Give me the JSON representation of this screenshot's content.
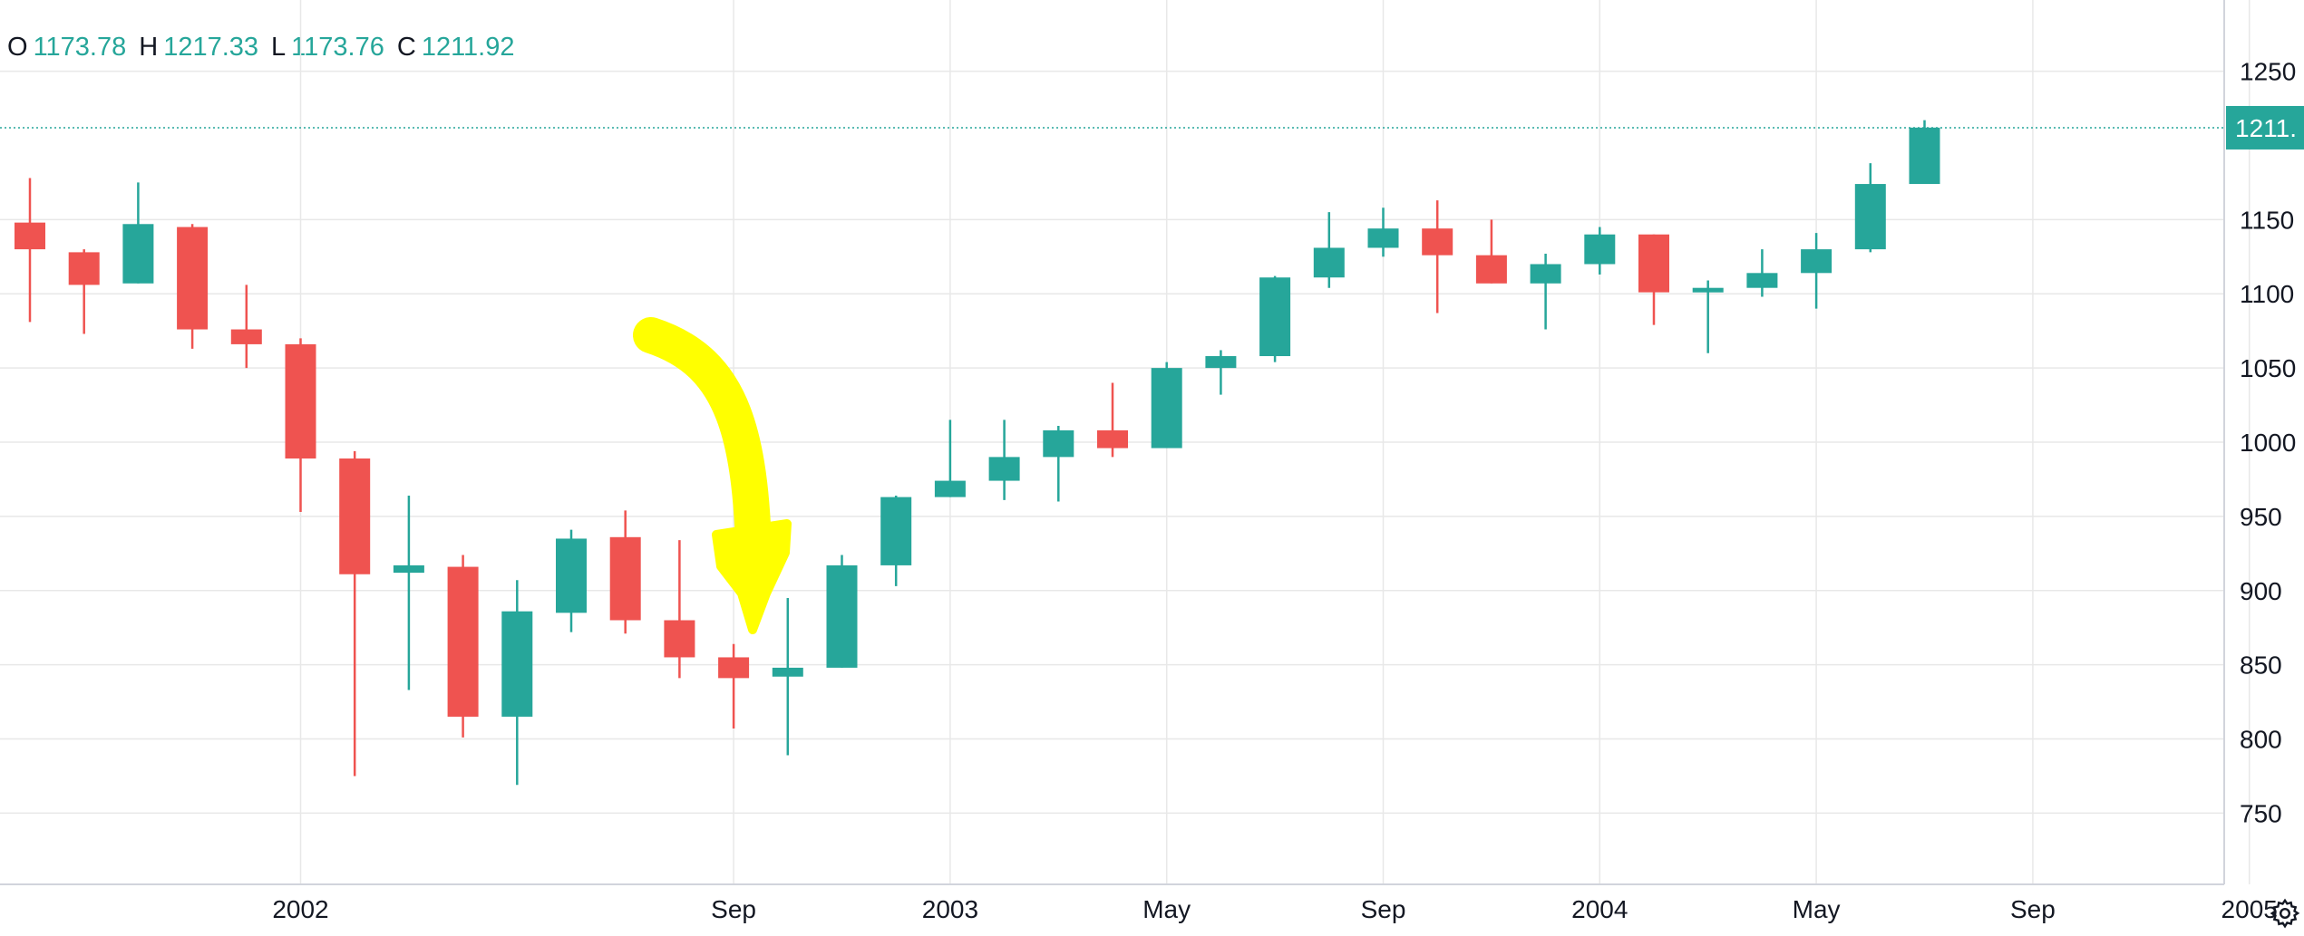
{
  "legend": {
    "o_label": "O",
    "o_value": "1173.78",
    "h_label": "H",
    "h_value": "1217.33",
    "l_label": "L",
    "l_value": "1173.76",
    "c_label": "C",
    "c_value": "1211.92"
  },
  "last_price_label": "1211.",
  "colors": {
    "up": "#26a69a",
    "down": "#ef5350",
    "annotation": "#ffff00",
    "grid": "#e8e8e8",
    "axis_text": "#131722"
  },
  "chart_data": {
    "type": "candlestick",
    "interval": "monthly",
    "y_ticks": [
      750,
      800,
      850,
      900,
      950,
      1000,
      1050,
      1100,
      1150,
      1250
    ],
    "ylim": [
      702,
      1298
    ],
    "x_tick_labels": [
      "2002",
      "Sep",
      "2003",
      "May",
      "Sep",
      "2004",
      "May",
      "Sep",
      "2005"
    ],
    "x_tick_months": [
      "2002-01",
      "2002-09",
      "2003-01",
      "2003-05",
      "2003-09",
      "2004-01",
      "2004-05",
      "2004-09",
      "2005-01"
    ],
    "last_price": 1211.92,
    "candles": [
      {
        "date": "2001-08",
        "open": 1148,
        "high": 1178,
        "low": 1081,
        "close": 1130
      },
      {
        "date": "2001-09",
        "open": 1128,
        "high": 1130,
        "low": 1073,
        "close": 1106
      },
      {
        "date": "2001-10",
        "open": 1107,
        "high": 1175,
        "low": 1107,
        "close": 1147
      },
      {
        "date": "2001-11",
        "open": 1145,
        "high": 1147,
        "low": 1063,
        "close": 1076
      },
      {
        "date": "2001-12",
        "open": 1076,
        "high": 1106,
        "low": 1050,
        "close": 1066
      },
      {
        "date": "2002-01",
        "open": 1066,
        "high": 1070,
        "low": 953,
        "close": 989
      },
      {
        "date": "2002-02",
        "open": 989,
        "high": 994,
        "low": 775,
        "close": 911
      },
      {
        "date": "2002-03",
        "open": 912,
        "high": 964,
        "low": 833,
        "close": 917
      },
      {
        "date": "2002-04",
        "open": 916,
        "high": 924,
        "low": 801,
        "close": 815
      },
      {
        "date": "2002-05",
        "open": 815,
        "high": 907,
        "low": 769,
        "close": 886
      },
      {
        "date": "2002-06",
        "open": 885,
        "high": 941,
        "low": 872,
        "close": 935
      },
      {
        "date": "2002-07",
        "open": 936,
        "high": 954,
        "low": 871,
        "close": 880
      },
      {
        "date": "2002-08",
        "open": 880,
        "high": 934,
        "low": 841,
        "close": 855
      },
      {
        "date": "2002-09",
        "open": 855,
        "high": 864,
        "low": 807,
        "close": 841
      },
      {
        "date": "2002-10",
        "open": 842,
        "high": 895,
        "low": 789,
        "close": 848
      },
      {
        "date": "2002-11",
        "open": 848,
        "high": 924,
        "low": 848,
        "close": 917
      },
      {
        "date": "2002-12",
        "open": 917,
        "high": 964,
        "low": 903,
        "close": 963
      },
      {
        "date": "2003-01",
        "open": 963,
        "high": 1015,
        "low": 963,
        "close": 974
      },
      {
        "date": "2003-02",
        "open": 974,
        "high": 1015,
        "low": 961,
        "close": 990
      },
      {
        "date": "2003-03",
        "open": 990,
        "high": 1011,
        "low": 960,
        "close": 1008
      },
      {
        "date": "2003-04",
        "open": 1008,
        "high": 1040,
        "low": 990,
        "close": 996
      },
      {
        "date": "2003-05",
        "open": 996,
        "high": 1054,
        "low": 996,
        "close": 1050
      },
      {
        "date": "2003-06",
        "open": 1050,
        "high": 1062,
        "low": 1032,
        "close": 1058
      },
      {
        "date": "2003-07",
        "open": 1058,
        "high": 1112,
        "low": 1054,
        "close": 1111
      },
      {
        "date": "2003-08",
        "open": 1111,
        "high": 1155,
        "low": 1104,
        "close": 1131
      },
      {
        "date": "2003-09",
        "open": 1131,
        "high": 1158,
        "low": 1125,
        "close": 1144
      },
      {
        "date": "2003-10",
        "open": 1144,
        "high": 1163,
        "low": 1087,
        "close": 1126
      },
      {
        "date": "2003-11",
        "open": 1126,
        "high": 1150,
        "low": 1107,
        "close": 1107
      },
      {
        "date": "2003-12",
        "open": 1107,
        "high": 1127,
        "low": 1076,
        "close": 1120
      },
      {
        "date": "2004-01",
        "open": 1120,
        "high": 1145,
        "low": 1113,
        "close": 1140
      },
      {
        "date": "2004-02",
        "open": 1140,
        "high": 1140,
        "low": 1079,
        "close": 1101
      },
      {
        "date": "2004-03",
        "open": 1101,
        "high": 1109,
        "low": 1060,
        "close": 1104
      },
      {
        "date": "2004-04",
        "open": 1104,
        "high": 1130,
        "low": 1098,
        "close": 1114
      },
      {
        "date": "2004-05",
        "open": 1114,
        "high": 1141,
        "low": 1090,
        "close": 1130
      },
      {
        "date": "2004-06",
        "open": 1130,
        "high": 1188,
        "low": 1128,
        "close": 1174
      },
      {
        "date": "2004-07",
        "open": 1174,
        "high": 1217,
        "low": 1174,
        "close": 1212
      }
    ]
  }
}
